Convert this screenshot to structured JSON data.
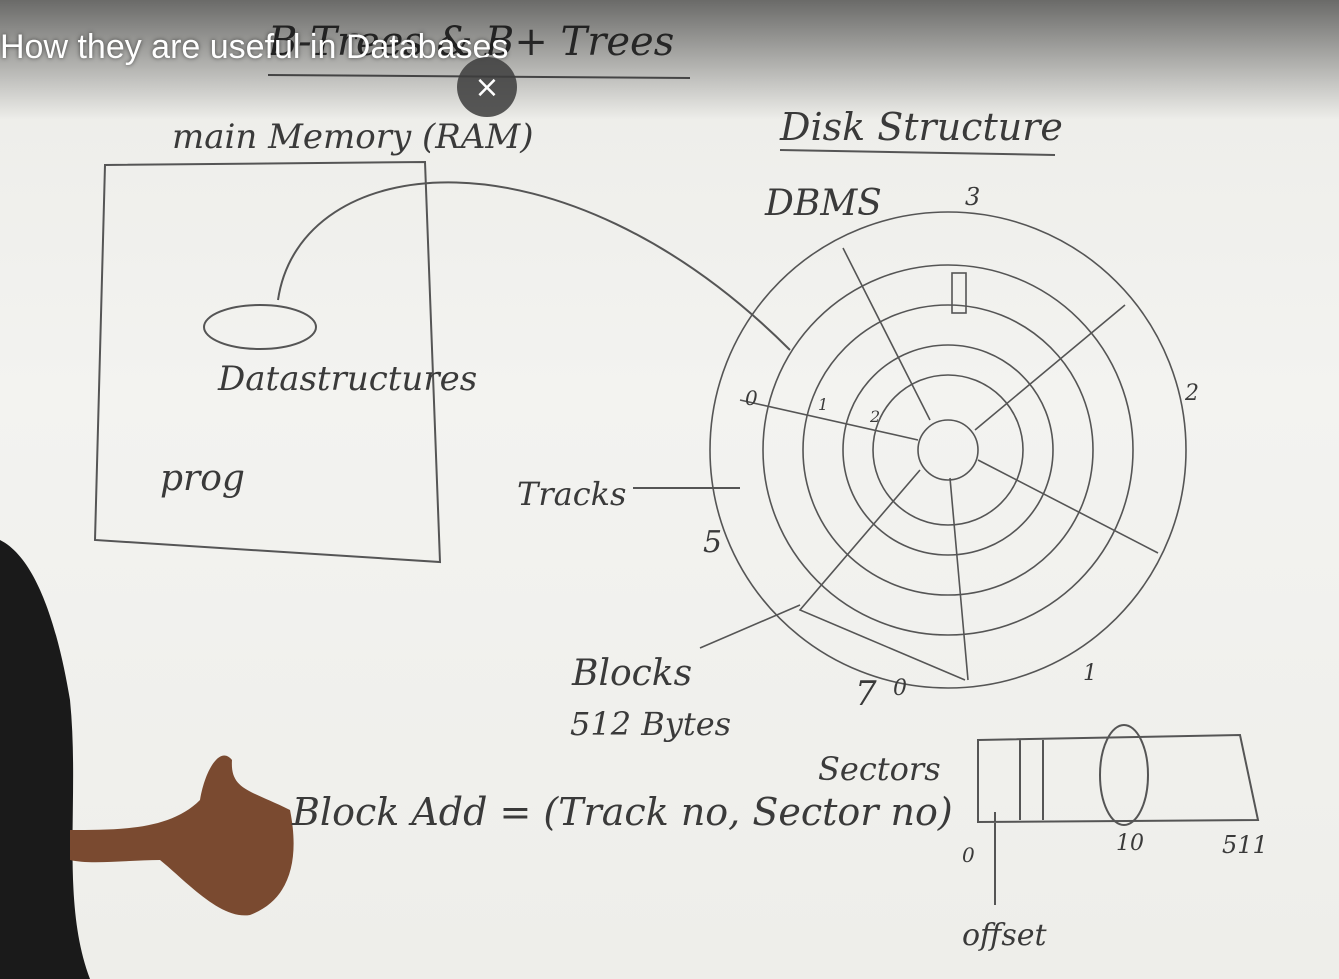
{
  "video": {
    "title": "How they are useful in Databases"
  },
  "whiteboard": {
    "heading": "B-Trees & B+ Trees",
    "labels": [
      "main Memory (RAM)",
      "Disk Structure",
      "DBMS",
      "Datastructures",
      "prog",
      "Tracks",
      "Blocks",
      "512 Bytes",
      "Block Add = (Track no, Sector no)",
      "Sectors",
      "offset",
      "3",
      "2",
      "1",
      "0",
      "7",
      "5",
      "0",
      "1",
      "2",
      "10",
      "511",
      "0"
    ]
  }
}
